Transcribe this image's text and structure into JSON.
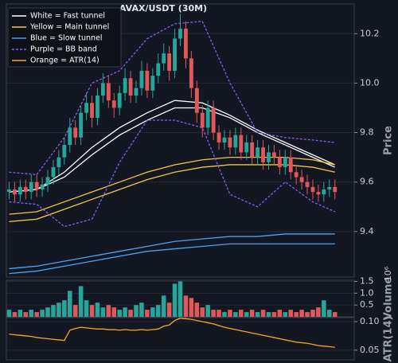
{
  "chart_data": [
    {
      "type": "candlestick",
      "title": "AVAX/USDT (30M)",
      "y_label": "Price",
      "ylim": [
        9.216,
        10.32
      ],
      "yticks": [
        9.4,
        9.6,
        9.8,
        {
          "value": 10,
          "label": "10.0"
        },
        10.2
      ],
      "grid": true,
      "up_color": "#26a69a",
      "down_color": "#e0585a",
      "open": [
        9.56,
        9.57,
        9.55,
        9.58,
        9.56,
        9.6,
        9.57,
        9.59,
        9.62,
        9.66,
        9.7,
        9.75,
        9.82,
        9.78,
        9.88,
        9.92,
        9.86,
        9.95,
        10.0,
        9.93,
        9.9,
        9.96,
        10.02,
        9.95,
        9.98,
        10.05,
        9.97,
        10.03,
        10.08,
        10.12,
        10.05,
        10.18,
        10.22,
        10.1,
        9.98,
        9.88,
        9.82,
        9.9,
        9.8,
        9.76,
        9.78,
        9.74,
        9.79,
        9.72,
        9.76,
        9.7,
        9.74,
        9.68,
        9.72,
        9.7,
        9.66,
        9.7,
        9.64,
        9.62,
        9.6,
        9.58,
        9.56,
        9.55,
        9.57,
        9.58
      ],
      "high": [
        9.6,
        9.6,
        9.61,
        9.61,
        9.63,
        9.63,
        9.62,
        9.65,
        9.69,
        9.73,
        9.78,
        9.86,
        9.85,
        9.91,
        9.96,
        9.95,
        9.98,
        10.04,
        10.03,
        9.96,
        9.99,
        10.06,
        10.05,
        10.01,
        10.09,
        10.08,
        10.06,
        10.12,
        10.16,
        10.15,
        10.22,
        10.28,
        10.25,
        10.13,
        10.01,
        9.91,
        9.93,
        9.93,
        9.83,
        9.81,
        9.81,
        9.82,
        9.82,
        9.79,
        9.79,
        9.77,
        9.77,
        9.75,
        9.75,
        9.73,
        9.73,
        9.73,
        9.67,
        9.65,
        9.63,
        9.61,
        9.59,
        9.6,
        9.61,
        9.61
      ],
      "low": [
        9.53,
        9.52,
        9.52,
        9.53,
        9.53,
        9.54,
        9.54,
        9.56,
        9.59,
        9.63,
        9.67,
        9.72,
        9.75,
        9.75,
        9.85,
        9.82,
        9.83,
        9.92,
        9.9,
        9.86,
        9.87,
        9.93,
        9.92,
        9.92,
        9.95,
        9.94,
        9.94,
        10.0,
        10.05,
        10.01,
        10.02,
        10.15,
        10.06,
        9.94,
        9.84,
        9.78,
        9.79,
        9.77,
        9.73,
        9.73,
        9.71,
        9.71,
        9.69,
        9.69,
        9.67,
        9.67,
        9.65,
        9.65,
        9.67,
        9.63,
        9.63,
        9.61,
        9.59,
        9.57,
        9.55,
        9.53,
        9.52,
        9.52,
        9.54,
        9.53
      ],
      "close": [
        9.57,
        9.55,
        9.58,
        9.56,
        9.6,
        9.57,
        9.59,
        9.62,
        9.66,
        9.7,
        9.75,
        9.82,
        9.78,
        9.88,
        9.92,
        9.86,
        9.95,
        10.0,
        9.93,
        9.9,
        9.96,
        10.02,
        9.95,
        9.98,
        10.05,
        9.97,
        10.03,
        10.08,
        10.12,
        10.05,
        10.18,
        10.22,
        10.1,
        9.98,
        9.88,
        9.82,
        9.9,
        9.8,
        9.76,
        9.78,
        9.74,
        9.79,
        9.72,
        9.76,
        9.7,
        9.74,
        9.68,
        9.72,
        9.7,
        9.66,
        9.7,
        9.64,
        9.62,
        9.6,
        9.58,
        9.56,
        9.55,
        9.57,
        9.58,
        9.56
      ],
      "series": [
        {
          "color": "#ffffff",
          "x": [
            0,
            5,
            10,
            15,
            20,
            25,
            30,
            35,
            40,
            45,
            50,
            55,
            59
          ],
          "values": [
            9.56,
            9.57,
            9.64,
            9.74,
            9.82,
            9.88,
            9.93,
            9.92,
            9.87,
            9.81,
            9.76,
            9.71,
            9.67
          ]
        },
        {
          "color": "#ffffff",
          "x": [
            0,
            5,
            10,
            15,
            20,
            25,
            30,
            35,
            40,
            45,
            50,
            55,
            59
          ],
          "values": [
            9.56,
            9.57,
            9.62,
            9.71,
            9.79,
            9.85,
            9.9,
            9.9,
            9.86,
            9.8,
            9.75,
            9.7,
            9.66
          ]
        },
        {
          "color": "#f5c542",
          "x": [
            0,
            5,
            10,
            15,
            20,
            25,
            30,
            35,
            40,
            45,
            50,
            55,
            59
          ],
          "values": [
            9.47,
            9.48,
            9.52,
            9.56,
            9.6,
            9.64,
            9.67,
            9.69,
            9.7,
            9.7,
            9.7,
            9.69,
            9.67
          ]
        },
        {
          "color": "#f5c542",
          "x": [
            0,
            5,
            10,
            15,
            20,
            25,
            30,
            35,
            40,
            45,
            50,
            55,
            59
          ],
          "values": [
            9.44,
            9.45,
            9.49,
            9.53,
            9.57,
            9.61,
            9.64,
            9.66,
            9.67,
            9.67,
            9.67,
            9.66,
            9.64
          ]
        },
        {
          "color": "#4aa3f0",
          "x": [
            0,
            5,
            10,
            15,
            20,
            25,
            30,
            35,
            40,
            45,
            50,
            55,
            59
          ],
          "values": [
            9.25,
            9.26,
            9.28,
            9.3,
            9.32,
            9.34,
            9.36,
            9.37,
            9.38,
            9.38,
            9.39,
            9.39,
            9.39
          ]
        },
        {
          "color": "#4aa3f0",
          "x": [
            0,
            5,
            10,
            15,
            20,
            25,
            30,
            35,
            40,
            45,
            50,
            55,
            59
          ],
          "values": [
            9.23,
            9.24,
            9.26,
            9.28,
            9.3,
            9.32,
            9.33,
            9.34,
            9.35,
            9.35,
            9.35,
            9.35,
            9.35
          ]
        },
        {
          "color": "#8a5cf0",
          "dash": true,
          "x": [
            0,
            5,
            10,
            15,
            20,
            25,
            30,
            35,
            40,
            45,
            50,
            55,
            59
          ],
          "values": [
            9.64,
            9.63,
            9.78,
            10.0,
            10.05,
            10.18,
            10.24,
            10.25,
            10.0,
            9.8,
            9.78,
            9.77,
            9.76
          ]
        },
        {
          "color": "#8a5cf0",
          "dash": true,
          "x": [
            0,
            5,
            10,
            15,
            20,
            25,
            30,
            35,
            40,
            45,
            50,
            55,
            59
          ],
          "values": [
            9.52,
            9.51,
            9.42,
            9.45,
            9.68,
            9.85,
            9.85,
            9.82,
            9.55,
            9.5,
            9.6,
            9.52,
            9.48
          ]
        }
      ],
      "legend": [
        {
          "label": "White = Fast tunnel",
          "color": "#ffffff"
        },
        {
          "label": "Yellow = Main tunnel",
          "color": "#f5c542"
        },
        {
          "label": "Blue = Slow tunnel",
          "color": "#4aa3f0"
        },
        {
          "label": "Purple = BB band",
          "color": "#8a5cf0",
          "dash": true
        },
        {
          "label": "Orange = ATR(14)",
          "color": "#f5a623"
        }
      ]
    },
    {
      "type": "bar",
      "y_label": "Volume",
      "y_scale_label": "10⁶",
      "ylim": [
        0,
        1.55
      ],
      "yticks": [
        0.5,
        {
          "value": 1,
          "label": "1.0"
        },
        1.5
      ],
      "grid": true,
      "values": [
        0.3,
        0.2,
        0.3,
        0.2,
        0.3,
        0.2,
        0.3,
        0.4,
        0.5,
        0.6,
        0.7,
        1.1,
        0.5,
        1.3,
        0.7,
        0.5,
        0.6,
        0.4,
        0.5,
        0.4,
        0.3,
        0.4,
        0.3,
        0.5,
        0.6,
        0.3,
        0.4,
        0.5,
        0.9,
        0.6,
        1.4,
        1.5,
        0.9,
        0.8,
        0.6,
        0.4,
        0.5,
        0.3,
        0.3,
        0.2,
        0.3,
        0.2,
        0.3,
        0.2,
        0.3,
        0.2,
        0.3,
        0.2,
        0.2,
        0.3,
        0.2,
        0.3,
        0.2,
        0.3,
        0.2,
        0.3,
        0.4,
        0.7,
        0.3,
        0.2
      ]
    },
    {
      "type": "line",
      "y_label": "ATR(14)",
      "color": "#f5a623",
      "ylim": [
        0.033,
        0.107
      ],
      "yticks": [
        0.05,
        {
          "value": 0.1,
          "label": "0.10"
        }
      ],
      "grid": true,
      "values": [
        0.078,
        0.077,
        0.076,
        0.075,
        0.074,
        0.072,
        0.071,
        0.07,
        0.069,
        0.068,
        0.067,
        0.085,
        0.088,
        0.09,
        0.089,
        0.088,
        0.087,
        0.087,
        0.086,
        0.086,
        0.085,
        0.086,
        0.085,
        0.085,
        0.086,
        0.085,
        0.086,
        0.087,
        0.092,
        0.094,
        0.102,
        0.106,
        0.105,
        0.104,
        0.102,
        0.1,
        0.098,
        0.096,
        0.093,
        0.09,
        0.088,
        0.086,
        0.084,
        0.082,
        0.08,
        0.078,
        0.076,
        0.074,
        0.072,
        0.07,
        0.068,
        0.066,
        0.064,
        0.063,
        0.062,
        0.06,
        0.058,
        0.057,
        0.056,
        0.055
      ]
    }
  ]
}
